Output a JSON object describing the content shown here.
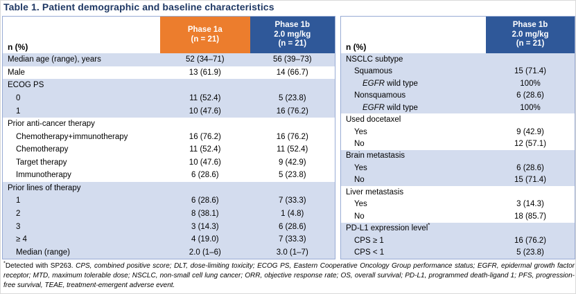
{
  "title": "Table 1. Patient demographic and baseline characteristics",
  "colors": {
    "title_navy": "#1F3864",
    "header_orange": "#EC7D2D",
    "header_blue": "#2F5899",
    "row_light_blue": "#D3DCEE",
    "table_border": "#98ABD4"
  },
  "left_table": {
    "header": {
      "label": "n (%)",
      "phase1a_lines": [
        "Phase 1a",
        "(n = 21)"
      ],
      "phase1b_lines": [
        "Phase 1b",
        "2.0 mg/kg",
        "(n = 21)"
      ]
    },
    "rows": [
      {
        "label": "Median age (range), years",
        "v1": "52 (34–71)",
        "v2": "56 (39–73)"
      },
      {
        "label": "Male",
        "v1": "13 (61.9)",
        "v2": "14 (66.7)"
      },
      {
        "label": "ECOG PS",
        "v1": "",
        "v2": ""
      },
      {
        "label": "0",
        "v1": "11 (52.4)",
        "v2": "5 (23.8)"
      },
      {
        "label": "1",
        "v1": "10 (47.6)",
        "v2": "16 (76.2)"
      },
      {
        "label": "Prior anti-cancer therapy",
        "v1": "",
        "v2": ""
      },
      {
        "label": "Chemotherapy+immunotherapy",
        "v1": "16 (76.2)",
        "v2": "16 (76.2)"
      },
      {
        "label": "Chemotherapy",
        "v1": "11 (52.4)",
        "v2": "11 (52.4)"
      },
      {
        "label": "Target therapy",
        "v1": "10 (47.6)",
        "v2": "9 (42.9)"
      },
      {
        "label": "Immunotherapy",
        "v1": "6 (28.6)",
        "v2": "5 (23.8)"
      },
      {
        "label": "Prior lines of therapy",
        "v1": "",
        "v2": ""
      },
      {
        "label": "1",
        "v1": "6 (28.6)",
        "v2": "7 (33.3)"
      },
      {
        "label": "2",
        "v1": "8 (38.1)",
        "v2": "1 (4.8)"
      },
      {
        "label": "3",
        "v1": "3 (14.3)",
        "v2": "6 (28.6)"
      },
      {
        "label": "≥ 4",
        "v1": "4 (19.0)",
        "v2": "7 (33.3)"
      },
      {
        "label": "Median (range)",
        "v1": "2.0 (1–6)",
        "v2": "3.0 (1–7)"
      }
    ]
  },
  "right_table": {
    "header": {
      "label": "n (%)",
      "phase1b_lines": [
        "Phase 1b",
        "2.0 mg/kg",
        "(n = 21)"
      ]
    },
    "rows": [
      {
        "label": "NSCLC subtype",
        "v1": ""
      },
      {
        "label": "Squamous",
        "v1": "15 (71.4)"
      },
      {
        "em": "EGFR",
        "label": " wild type",
        "v1": "100%"
      },
      {
        "label": "Nonsquamous",
        "v1": "6 (28.6)"
      },
      {
        "em": "EGFR",
        "label": " wild type",
        "v1": "100%"
      },
      {
        "label": "Used docetaxel",
        "v1": ""
      },
      {
        "label": "Yes",
        "v1": "9 (42.9)"
      },
      {
        "label": "No",
        "v1": "12 (57.1)"
      },
      {
        "label": "Brain metastasis",
        "v1": ""
      },
      {
        "label": "Yes",
        "v1": "6 (28.6)"
      },
      {
        "label": "No",
        "v1": "15 (71.4)"
      },
      {
        "label": "Liver metastasis",
        "v1": ""
      },
      {
        "label": "Yes",
        "v1": "3 (14.3)"
      },
      {
        "label": "No",
        "v1": "18 (85.7)"
      },
      {
        "label": "PD-L1 expression level",
        "sup": "*",
        "v1": ""
      },
      {
        "label": "CPS ≥ 1",
        "v1": "16 (76.2)"
      },
      {
        "label": "CPS < 1",
        "v1": "5 (23.8)"
      }
    ]
  },
  "footnote": {
    "marker": "*",
    "lead": "Detected with SP263.",
    "abbreviations": "CPS, combined positive score; DLT, dose-limiting toxicity; ECOG PS, Eastern Cooperative Oncology Group performance status; EGFR, epidermal growth factor receptor; MTD, maximum tolerable dose; NSCLC, non-small cell lung cancer; ORR, objective response rate; OS, overall survival; PD-L1, programmed death-ligand 1; PFS, progression-free survival, TEAE, treatment-emergent adverse event."
  }
}
